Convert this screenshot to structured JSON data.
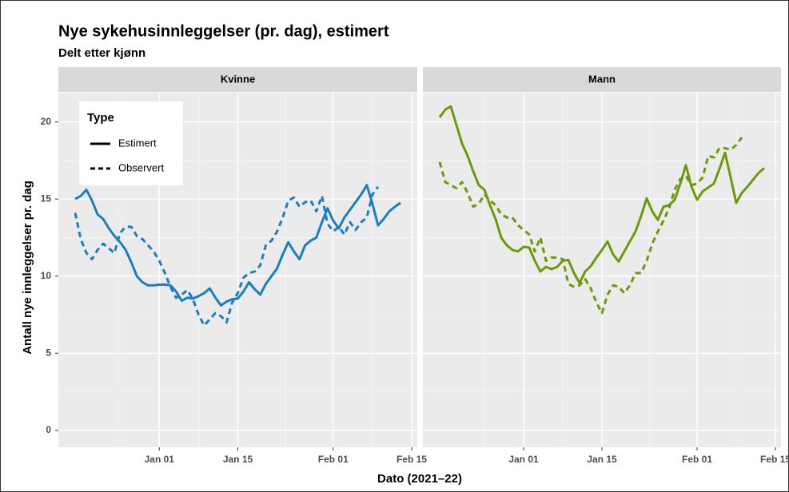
{
  "chart_data": [
    {
      "type": "line",
      "title": "Nye sykehusinnleggelser (pr. dag), estimert",
      "subtitle": "Delt etter kjønn",
      "panel": "Kvinne",
      "x_label": "Dato (2021–22)",
      "y_label": "Antall nye innleggelser pr. dag",
      "legend_title": "Type",
      "legend": "top-left",
      "grid": true,
      "x": [
        "2021-12-17",
        "2021-12-18",
        "2021-12-19",
        "2021-12-20",
        "2021-12-21",
        "2021-12-22",
        "2021-12-23",
        "2021-12-24",
        "2021-12-25",
        "2021-12-26",
        "2021-12-27",
        "2021-12-28",
        "2021-12-29",
        "2021-12-30",
        "2021-12-31",
        "2022-01-01",
        "2022-01-02",
        "2022-01-03",
        "2022-01-04",
        "2022-01-05",
        "2022-01-06",
        "2022-01-07",
        "2022-01-08",
        "2022-01-09",
        "2022-01-10",
        "2022-01-11",
        "2022-01-12",
        "2022-01-13",
        "2022-01-14",
        "2022-01-15",
        "2022-01-16",
        "2022-01-17",
        "2022-01-18",
        "2022-01-19",
        "2022-01-20",
        "2022-01-21",
        "2022-01-22",
        "2022-01-23",
        "2022-01-24",
        "2022-01-25",
        "2022-01-26",
        "2022-01-27",
        "2022-01-28",
        "2022-01-29",
        "2022-01-30",
        "2022-01-31",
        "2022-02-01",
        "2022-02-02",
        "2022-02-03",
        "2022-02-04",
        "2022-02-05",
        "2022-02-06",
        "2022-02-07",
        "2022-02-08",
        "2022-02-09",
        "2022-02-10",
        "2022-02-11",
        "2022-02-12",
        "2022-02-13"
      ],
      "xlim": [
        "2021-12-14",
        "2022-02-16"
      ],
      "xticks": [
        {
          "value": "2022-01-01",
          "label": "Jan 01"
        },
        {
          "value": "2022-01-15",
          "label": "Jan 15"
        },
        {
          "value": "2022-02-01",
          "label": "Feb 01"
        },
        {
          "value": "2022-02-15",
          "label": "Feb 15"
        }
      ],
      "ylim": [
        -1.1,
        21.9
      ],
      "yticks": [
        0,
        5,
        10,
        15,
        20
      ],
      "series": [
        {
          "name": "Estimert",
          "color": "#1a7fbf",
          "linetype": "solid",
          "values": [
            15.0,
            15.2,
            15.6,
            14.9,
            14.0,
            13.7,
            13.1,
            12.6,
            12.2,
            11.7,
            10.9,
            10.0,
            9.6,
            9.4,
            9.4,
            9.45,
            9.45,
            9.4,
            9.0,
            8.4,
            8.6,
            8.55,
            8.7,
            8.9,
            9.2,
            8.6,
            8.1,
            8.35,
            8.5,
            8.55,
            9.0,
            9.6,
            9.15,
            8.8,
            9.5,
            10.0,
            10.5,
            11.4,
            12.2,
            11.6,
            11.1,
            12.0,
            12.3,
            12.5,
            13.5,
            14.4,
            13.6,
            13.1,
            13.8,
            14.3,
            14.8,
            15.3,
            15.9,
            14.7,
            13.3,
            13.7,
            14.2,
            14.5,
            14.75
          ]
        },
        {
          "name": "Observert",
          "color": "#1a7fbf",
          "linetype": "dashed",
          "values": [
            14.1,
            12.4,
            11.5,
            11.1,
            11.7,
            12.1,
            11.8,
            11.5,
            12.8,
            13.2,
            13.2,
            12.6,
            12.4,
            12.0,
            11.6,
            11.0,
            10.2,
            9.3,
            8.6,
            8.8,
            9.1,
            8.5,
            7.5,
            6.8,
            7.2,
            7.6,
            7.4,
            7.0,
            8.3,
            8.9,
            9.9,
            10.2,
            10.3,
            10.7,
            12.0,
            12.3,
            12.9,
            13.8,
            14.9,
            15.1,
            14.5,
            14.8,
            14.9,
            14.2,
            15.2,
            13.4,
            12.9,
            13.2,
            12.7,
            13.5,
            13.0,
            13.5,
            13.8,
            15.3,
            15.8,
            null,
            null,
            null,
            null
          ]
        }
      ]
    },
    {
      "type": "line",
      "panel": "Mann",
      "grid": true,
      "x": [
        "2021-12-17",
        "2021-12-18",
        "2021-12-19",
        "2021-12-20",
        "2021-12-21",
        "2021-12-22",
        "2021-12-23",
        "2021-12-24",
        "2021-12-25",
        "2021-12-26",
        "2021-12-27",
        "2021-12-28",
        "2021-12-29",
        "2021-12-30",
        "2021-12-31",
        "2022-01-01",
        "2022-01-02",
        "2022-01-03",
        "2022-01-04",
        "2022-01-05",
        "2022-01-06",
        "2022-01-07",
        "2022-01-08",
        "2022-01-09",
        "2022-01-10",
        "2022-01-11",
        "2022-01-12",
        "2022-01-13",
        "2022-01-14",
        "2022-01-15",
        "2022-01-16",
        "2022-01-17",
        "2022-01-18",
        "2022-01-19",
        "2022-01-20",
        "2022-01-21",
        "2022-01-22",
        "2022-01-23",
        "2022-01-24",
        "2022-01-25",
        "2022-01-26",
        "2022-01-27",
        "2022-01-28",
        "2022-01-29",
        "2022-01-30",
        "2022-01-31",
        "2022-02-01",
        "2022-02-02",
        "2022-02-03",
        "2022-02-04",
        "2022-02-05",
        "2022-02-06",
        "2022-02-07",
        "2022-02-08",
        "2022-02-09",
        "2022-02-10",
        "2022-02-11",
        "2022-02-12",
        "2022-02-13"
      ],
      "xlim": [
        "2021-12-14",
        "2022-02-16"
      ],
      "xticks": [
        {
          "value": "2022-01-01",
          "label": "Jan 01"
        },
        {
          "value": "2022-01-15",
          "label": "Jan 15"
        },
        {
          "value": "2022-02-01",
          "label": "Feb 01"
        },
        {
          "value": "2022-02-15",
          "label": "Feb 15"
        }
      ],
      "ylim": [
        -1.1,
        21.9
      ],
      "yticks": [
        0,
        5,
        10,
        15,
        20
      ],
      "series": [
        {
          "color": "#6b9a0a",
          "linetype": "solid",
          "values": [
            20.3,
            20.8,
            21.0,
            19.8,
            18.6,
            17.8,
            16.8,
            15.9,
            15.6,
            14.6,
            13.7,
            12.5,
            12.0,
            11.7,
            11.6,
            11.9,
            11.85,
            11.0,
            10.3,
            10.6,
            10.45,
            10.6,
            11.0,
            11.05,
            10.2,
            9.55,
            10.3,
            10.65,
            11.2,
            11.7,
            12.25,
            11.4,
            10.95,
            11.6,
            12.25,
            12.9,
            13.9,
            15.05,
            14.2,
            13.65,
            14.5,
            14.6,
            14.95,
            16.0,
            17.2,
            15.8,
            14.95,
            15.5,
            15.75,
            16.0,
            16.95,
            18.0,
            16.4,
            14.75,
            15.4,
            15.8,
            16.25,
            16.7,
            17.0
          ]
        },
        {
          "color": "#6b9a0a",
          "linetype": "dashed",
          "values": [
            17.4,
            16.1,
            15.9,
            15.7,
            16.1,
            15.4,
            14.5,
            14.7,
            15.3,
            14.9,
            14.6,
            14.0,
            13.8,
            13.8,
            13.3,
            13.0,
            12.7,
            11.6,
            12.5,
            11.0,
            11.2,
            11.2,
            11.1,
            9.5,
            9.3,
            9.4,
            9.8,
            9.2,
            8.3,
            7.6,
            8.8,
            9.4,
            9.3,
            8.9,
            9.4,
            10.2,
            10.2,
            11.0,
            12.1,
            12.9,
            13.6,
            14.4,
            15.6,
            16.3,
            16.5,
            15.9,
            16.0,
            16.4,
            17.8,
            17.7,
            18.3,
            18.3,
            18.2,
            18.5,
            19.0,
            null,
            null,
            null,
            null
          ]
        }
      ]
    }
  ]
}
